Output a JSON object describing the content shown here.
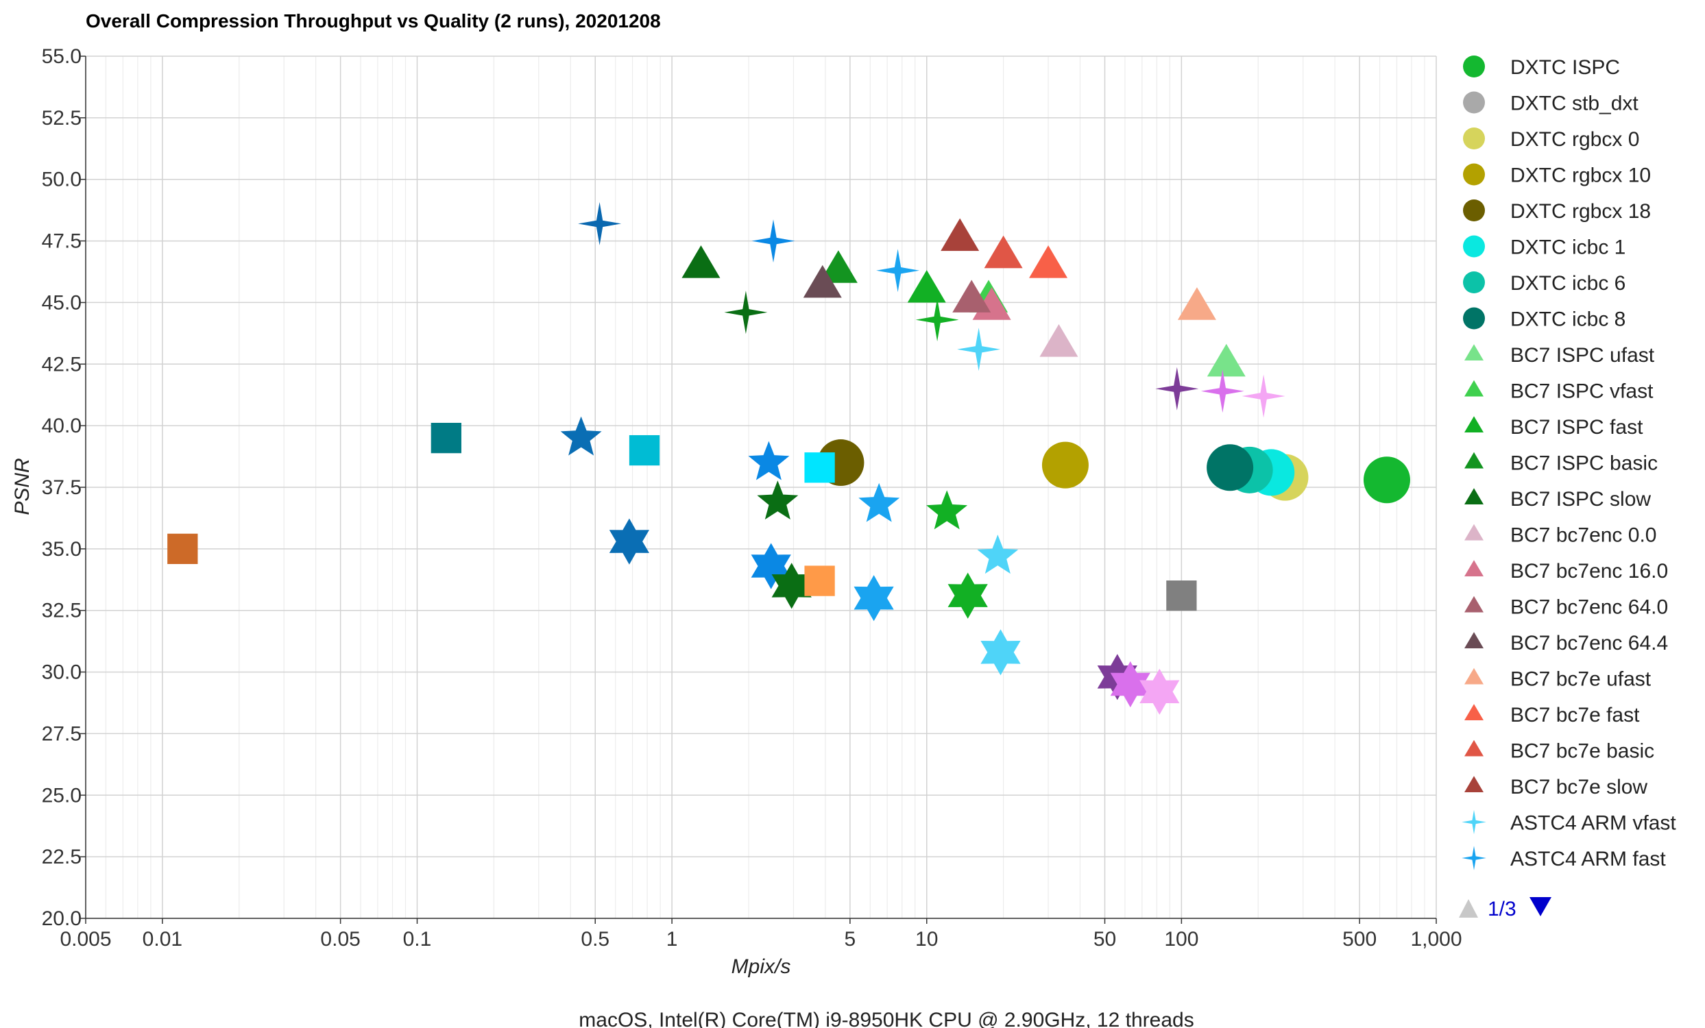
{
  "chart_data": {
    "type": "scatter",
    "title": "Overall Compression Throughput vs Quality (2 runs), 20201208",
    "xlabel": "Mpix/s",
    "ylabel": "PSNR",
    "footer": "macOS, Intel(R) Core(TM) i9-8950HK CPU @ 2.90GHz, 12 threads",
    "x_scale": "log",
    "xlim": [
      0.005,
      1000
    ],
    "ylim": [
      20.0,
      55.0
    ],
    "x_ticks": [
      {
        "value": 0.005,
        "label": "0.005"
      },
      {
        "value": 0.01,
        "label": "0.01"
      },
      {
        "value": 0.05,
        "label": "0.05"
      },
      {
        "value": 0.1,
        "label": "0.1"
      },
      {
        "value": 0.5,
        "label": "0.5"
      },
      {
        "value": 1,
        "label": "1"
      },
      {
        "value": 5,
        "label": "5"
      },
      {
        "value": 10,
        "label": "10"
      },
      {
        "value": 50,
        "label": "50"
      },
      {
        "value": 100,
        "label": "100"
      },
      {
        "value": 500,
        "label": "500"
      },
      {
        "value": 1000,
        "label": "1,000"
      }
    ],
    "y_ticks": [
      {
        "value": 20.0,
        "label": "20.0"
      },
      {
        "value": 22.5,
        "label": "22.5"
      },
      {
        "value": 25.0,
        "label": "25.0"
      },
      {
        "value": 27.5,
        "label": "27.5"
      },
      {
        "value": 30.0,
        "label": "30.0"
      },
      {
        "value": 32.5,
        "label": "32.5"
      },
      {
        "value": 35.0,
        "label": "35.0"
      },
      {
        "value": 37.5,
        "label": "37.5"
      },
      {
        "value": 40.0,
        "label": "40.0"
      },
      {
        "value": 42.5,
        "label": "42.5"
      },
      {
        "value": 45.0,
        "label": "45.0"
      },
      {
        "value": 47.5,
        "label": "47.5"
      },
      {
        "value": 50.0,
        "label": "50.0"
      },
      {
        "value": 52.5,
        "label": "52.5"
      },
      {
        "value": 55.0,
        "label": "55.0"
      }
    ],
    "grid": true,
    "legend_position": "right",
    "legend_page": {
      "label": "1/3",
      "up_color": "#c8c8c8",
      "down_color": "#0000cc"
    },
    "series": [
      {
        "name": "DXTC ISPC",
        "marker": "circle",
        "color": "#14b830",
        "points": [
          [
            640,
            37.8
          ]
        ]
      },
      {
        "name": "DXTC stb_dxt",
        "marker": "circle",
        "color": "#a9a9a9",
        "points": []
      },
      {
        "name": "DXTC rgbcx 0",
        "marker": "circle",
        "color": "#d6d45c",
        "points": [
          [
            255,
            37.9
          ]
        ]
      },
      {
        "name": "DXTC rgbcx 10",
        "marker": "circle",
        "color": "#b3a100",
        "points": [
          [
            35,
            38.4
          ]
        ]
      },
      {
        "name": "DXTC rgbcx 18",
        "marker": "circle",
        "color": "#6b5e00",
        "points": [
          [
            4.6,
            38.5
          ]
        ]
      },
      {
        "name": "DXTC icbc 1",
        "marker": "circle",
        "color": "#0ae8e0",
        "points": [
          [
            225,
            38.1
          ]
        ]
      },
      {
        "name": "DXTC icbc 6",
        "marker": "circle",
        "color": "#0cc2a8",
        "points": [
          [
            185,
            38.2
          ]
        ]
      },
      {
        "name": "DXTC icbc 8",
        "marker": "circle",
        "color": "#007466",
        "points": [
          [
            155,
            38.3
          ]
        ]
      },
      {
        "name": "BC7 ISPC ufast",
        "marker": "triangle",
        "color": "#78e38a",
        "points": [
          [
            150,
            42.5
          ]
        ]
      },
      {
        "name": "BC7 ISPC vfast",
        "marker": "triangle",
        "color": "#3fd04e",
        "points": [
          [
            17.5,
            45.1
          ]
        ]
      },
      {
        "name": "BC7 ISPC fast",
        "marker": "triangle",
        "color": "#12b024",
        "points": [
          [
            10,
            45.5
          ]
        ]
      },
      {
        "name": "BC7 ISPC basic",
        "marker": "triangle",
        "color": "#139420",
        "points": [
          [
            4.5,
            46.3
          ]
        ]
      },
      {
        "name": "BC7 ISPC slow",
        "marker": "triangle",
        "color": "#0a6e14",
        "points": [
          [
            1.3,
            46.5
          ]
        ]
      },
      {
        "name": "BC7 bc7enc 0.0",
        "marker": "triangle",
        "color": "#dcb4c8",
        "points": [
          [
            33,
            43.3
          ]
        ]
      },
      {
        "name": "BC7 bc7enc 16.0",
        "marker": "triangle",
        "color": "#d6738c",
        "points": [
          [
            18,
            44.8
          ]
        ]
      },
      {
        "name": "BC7 bc7enc 64.0",
        "marker": "triangle",
        "color": "#a8606e",
        "points": [
          [
            15,
            45.1
          ]
        ]
      },
      {
        "name": "BC7 bc7enc 64.4",
        "marker": "triangle",
        "color": "#6a4c55",
        "points": [
          [
            3.9,
            45.7
          ]
        ]
      },
      {
        "name": "BC7 bc7e ufast",
        "marker": "triangle",
        "color": "#f7a988",
        "points": [
          [
            115,
            44.8
          ]
        ]
      },
      {
        "name": "BC7 bc7e fast",
        "marker": "triangle",
        "color": "#f86048",
        "points": [
          [
            30,
            46.5
          ]
        ]
      },
      {
        "name": "BC7 bc7e basic",
        "marker": "triangle",
        "color": "#e05646",
        "points": [
          [
            20,
            46.9
          ]
        ]
      },
      {
        "name": "BC7 bc7e slow",
        "marker": "triangle",
        "color": "#a8423a",
        "points": [
          [
            13.5,
            47.6
          ]
        ]
      },
      {
        "name": "ASTC4 ARM vfast",
        "marker": "star4",
        "color": "#4fd4f8",
        "points": [
          [
            16,
            43.1
          ]
        ]
      },
      {
        "name": "ASTC4 ARM fast",
        "marker": "star4",
        "color": "#1aa4f0",
        "points": [
          [
            7.7,
            46.3
          ]
        ]
      }
    ],
    "unlisted_series": [
      {
        "marker": "star4",
        "color": "#0a88e4",
        "points": [
          [
            2.5,
            47.5
          ]
        ]
      },
      {
        "marker": "star4",
        "color": "#0a68b0",
        "points": [
          [
            0.52,
            48.2
          ]
        ]
      },
      {
        "marker": "star4",
        "color": "#0a6e14",
        "points": [
          [
            1.95,
            44.6
          ]
        ]
      },
      {
        "marker": "star4",
        "color": "#12b024",
        "points": [
          [
            11,
            44.3
          ]
        ]
      },
      {
        "marker": "star4",
        "color": "#7d3c98",
        "points": [
          [
            96,
            41.5
          ]
        ]
      },
      {
        "marker": "star4",
        "color": "#d970ec",
        "points": [
          [
            145,
            41.4
          ]
        ]
      },
      {
        "marker": "star4",
        "color": "#f4a6f4",
        "points": [
          [
            210,
            41.2
          ]
        ]
      },
      {
        "marker": "star5",
        "color": "#0a6eb4",
        "points": [
          [
            0.44,
            39.5
          ]
        ]
      },
      {
        "marker": "star5",
        "color": "#0a88e4",
        "points": [
          [
            2.4,
            38.5
          ]
        ]
      },
      {
        "marker": "star5",
        "color": "#0a6e14",
        "points": [
          [
            2.6,
            36.9
          ]
        ]
      },
      {
        "marker": "star5",
        "color": "#1aa4f0",
        "points": [
          [
            6.5,
            36.8
          ]
        ]
      },
      {
        "marker": "star5",
        "color": "#12b024",
        "points": [
          [
            12,
            36.5
          ]
        ]
      },
      {
        "marker": "star5",
        "color": "#4fd4f8",
        "points": [
          [
            19,
            34.7
          ]
        ]
      },
      {
        "marker": "star6",
        "color": "#0a6eb4",
        "points": [
          [
            0.68,
            35.3
          ]
        ]
      },
      {
        "marker": "star6",
        "color": "#0a88e4",
        "points": [
          [
            2.45,
            34.3
          ]
        ]
      },
      {
        "marker": "star6",
        "color": "#0a6e14",
        "points": [
          [
            2.95,
            33.5
          ]
        ]
      },
      {
        "marker": "star6",
        "color": "#1aa4f0",
        "points": [
          [
            6.2,
            33.0
          ]
        ]
      },
      {
        "marker": "star6",
        "color": "#12b024",
        "points": [
          [
            14.5,
            33.1
          ]
        ]
      },
      {
        "marker": "star6",
        "color": "#4fd4f8",
        "points": [
          [
            19.5,
            30.8
          ]
        ]
      },
      {
        "marker": "star6",
        "color": "#7d3c98",
        "points": [
          [
            56,
            29.8
          ]
        ]
      },
      {
        "marker": "star6",
        "color": "#d970ec",
        "points": [
          [
            63,
            29.5
          ]
        ]
      },
      {
        "marker": "star6",
        "color": "#f4a6f4",
        "points": [
          [
            82,
            29.2
          ]
        ]
      },
      {
        "marker": "square",
        "color": "#007b85",
        "points": [
          [
            0.13,
            39.5
          ]
        ]
      },
      {
        "marker": "square",
        "color": "#00bcd4",
        "points": [
          [
            0.78,
            39.0
          ]
        ]
      },
      {
        "marker": "square",
        "color": "#00e5ff",
        "points": [
          [
            3.8,
            38.3
          ]
        ]
      },
      {
        "marker": "square",
        "color": "#cd6a28",
        "points": [
          [
            0.012,
            35.0
          ]
        ]
      },
      {
        "marker": "square",
        "color": "#ff9a48",
        "points": [
          [
            3.8,
            33.7
          ]
        ]
      },
      {
        "marker": "square",
        "color": "#808080",
        "points": [
          [
            100,
            33.1
          ]
        ]
      }
    ]
  }
}
